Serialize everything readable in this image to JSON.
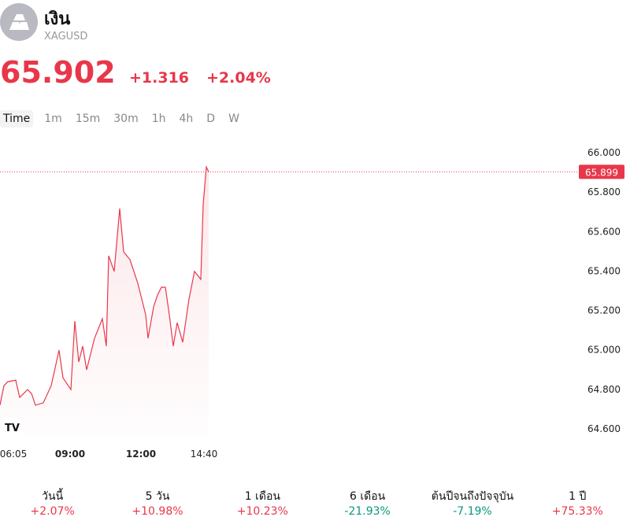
{
  "header": {
    "title": "เงิน",
    "symbol": "XAGUSD",
    "price": "65.902",
    "change": "+1.316",
    "change_pct": "+2.04%"
  },
  "tabs": [
    "Time",
    "1m",
    "15m",
    "30m",
    "1h",
    "4h",
    "D",
    "W"
  ],
  "chart_data": {
    "type": "line",
    "color": "#e8374a",
    "x": [
      362,
      372,
      382,
      402,
      412,
      432,
      442,
      452,
      472,
      492,
      512,
      522,
      542,
      552,
      562,
      572,
      582,
      602,
      622,
      632,
      638,
      652,
      666,
      676,
      692,
      712,
      732,
      738,
      752,
      762,
      772,
      782,
      792,
      802,
      812,
      826,
      842,
      856,
      872,
      878,
      886,
      892
    ],
    "series": [
      {
        "name": "XAGUSD",
        "color": "#e8374a",
        "values": [
          64.716,
          64.815,
          64.835,
          64.843,
          64.755,
          64.795,
          64.775,
          64.716,
          64.728,
          64.815,
          64.995,
          64.855,
          64.795,
          65.142,
          64.935,
          65.015,
          64.895,
          65.055,
          65.154,
          65.015,
          65.473,
          65.394,
          65.713,
          65.493,
          65.454,
          65.334,
          65.174,
          65.055,
          65.214,
          65.274,
          65.314,
          65.314,
          65.174,
          65.015,
          65.134,
          65.035,
          65.254,
          65.394,
          65.354,
          65.733,
          65.924,
          65.899
        ]
      }
    ],
    "xlim": [
      362,
      1832
    ],
    "xticks": [
      {
        "value": 365,
        "label": "06:05"
      },
      {
        "value": 540,
        "label": "09:00"
      },
      {
        "value": 720,
        "label": "12:00"
      },
      {
        "value": 880,
        "label": "14:40"
      }
    ],
    "ylim": [
      64.556,
      66.052
    ],
    "yticks": [
      {
        "value": 66,
        "label": "66.000"
      },
      {
        "value": 65.8,
        "label": "65.800"
      },
      {
        "value": 65.6,
        "label": "65.600"
      },
      {
        "value": 65.4,
        "label": "65.400"
      },
      {
        "value": 65.2,
        "label": "65.200"
      },
      {
        "value": 65,
        "label": "65.000"
      },
      {
        "value": 64.8,
        "label": "64.800"
      },
      {
        "value": 64.6,
        "label": "64.600"
      }
    ],
    "last_price": 65.899
  },
  "periods": [
    {
      "label": "วันนี้",
      "value": "+2.07%"
    },
    {
      "label": "5 วัน",
      "value": "+10.98%"
    },
    {
      "label": "1 เดือน",
      "value": "+10.23%"
    },
    {
      "label": "6 เดือน",
      "value": "-21.93%"
    },
    {
      "label": "ต้นปีจนถึงปัจจุบัน",
      "value": "-7.19%"
    },
    {
      "label": "1 ปี",
      "value": "+75.33%"
    }
  ]
}
